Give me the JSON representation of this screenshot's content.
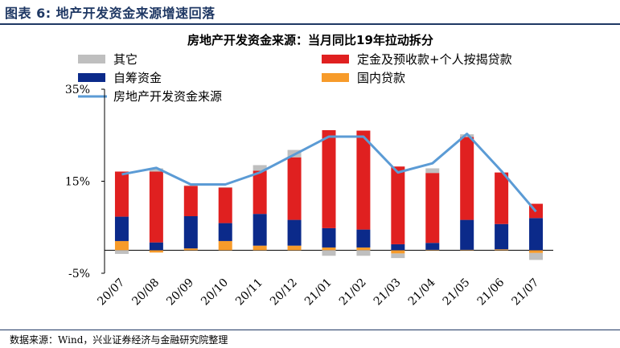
{
  "figure": {
    "title": "图表 6:  地产开发资金来源增速回落",
    "source": "数据来源：Wind，兴业证券经济与金融研究院整理"
  },
  "chart_data": {
    "type": "bar",
    "title": "房地产开发资金来源：当月同比19年拉动拆分",
    "categories": [
      "20/07",
      "20/08",
      "20/09",
      "20/10",
      "20/11",
      "20/12",
      "21/01",
      "21/02",
      "21/03",
      "21/04",
      "21/05",
      "21/06",
      "21/07"
    ],
    "yticks": [
      "35%",
      "15%",
      "-5%"
    ],
    "ylim": [
      -5,
      35
    ],
    "stacked": true,
    "series": [
      {
        "name": "其它",
        "color": "#bfbfbf",
        "values": [
          -0.8,
          0.7,
          0.1,
          0.1,
          1.2,
          1.6,
          -1.2,
          -1.2,
          -1.0,
          1.0,
          0.6,
          0,
          -1.5
        ]
      },
      {
        "name": "定金及预收款+个人按揭贷款",
        "color": "#e02020",
        "values": [
          9.8,
          15.4,
          6.6,
          7.7,
          9.4,
          13.6,
          21.3,
          21.5,
          16.9,
          15.2,
          18.0,
          11.2,
          3.1
        ]
      },
      {
        "name": "自筹资金",
        "color": "#0b2a8a",
        "values": [
          5.3,
          1.7,
          7.0,
          3.9,
          6.9,
          5.6,
          4.2,
          3.9,
          1.3,
          1.5,
          6.5,
          5.5,
          7.0
        ]
      },
      {
        "name": "国内贷款",
        "color": "#f79b2a",
        "values": [
          2.0,
          -0.5,
          0.4,
          2.0,
          1.0,
          1.0,
          0.6,
          0.6,
          -0.7,
          0.1,
          0.1,
          0.2,
          -0.6
        ]
      }
    ],
    "line": {
      "name": "房地产开发资金来源",
      "color": "#5b9bd5",
      "values": [
        16.5,
        17.9,
        14.3,
        14.3,
        16.9,
        20.8,
        24.7,
        24.7,
        16.9,
        18.9,
        25.3,
        17.2,
        8.4
      ]
    },
    "legend_position": "top",
    "grid": false
  }
}
